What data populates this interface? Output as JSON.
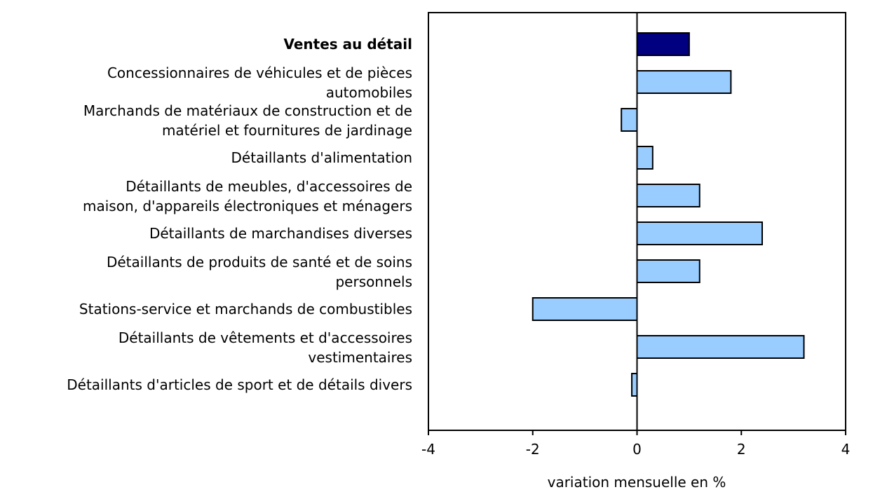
{
  "chart_data": {
    "type": "bar",
    "orientation": "horizontal",
    "categories": [
      [
        "Ventes au détail"
      ],
      [
        "Concessionnaires de véhicules et de pièces",
        "automobiles"
      ],
      [
        "Marchands de matériaux de construction et de",
        "matériel et fournitures de jardinage"
      ],
      [
        "Détaillants d'alimentation"
      ],
      [
        "Détaillants de meubles, d'accessoires de",
        "maison, d'appareils électroniques et ménagers"
      ],
      [
        "Détaillants de marchandises diverses"
      ],
      [
        "Détaillants de produits de santé et de soins",
        "personnels"
      ],
      [
        "Stations-service et marchands de combustibles"
      ],
      [
        "Détaillants de vêtements et d'accessoires",
        "vestimentaires"
      ],
      [
        "Détaillants d'articles de sport et de détails divers"
      ]
    ],
    "values": [
      1.0,
      1.8,
      -0.3,
      0.3,
      1.2,
      2.4,
      1.2,
      -2.0,
      3.2,
      -0.1
    ],
    "highlight_index": 0,
    "xlabel": "variation mensuelle en %",
    "xlim": [
      -4,
      4
    ],
    "xticks": [
      -4,
      -2,
      0,
      2,
      4
    ],
    "grid": false,
    "colors": {
      "highlight": "#000080",
      "bar": "#99ccff",
      "outline": "#000000"
    }
  }
}
